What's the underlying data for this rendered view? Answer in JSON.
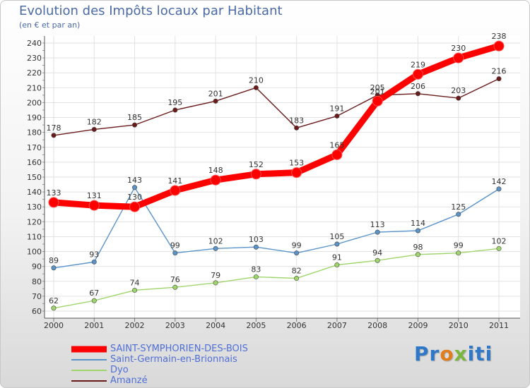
{
  "chart_data": {
    "type": "line",
    "title": "Evolution des Impôts locaux par Habitant",
    "subtitle": "(en € et par an)",
    "xlabel": "",
    "ylabel": "",
    "x": [
      "2000",
      "2001",
      "2002",
      "2003",
      "2004",
      "2005",
      "2006",
      "2007",
      "2008",
      "2009",
      "2010",
      "2011"
    ],
    "ylim": [
      60,
      240
    ],
    "yticks": [
      60,
      70,
      80,
      90,
      100,
      110,
      120,
      130,
      140,
      150,
      160,
      170,
      180,
      190,
      200,
      210,
      220,
      230,
      240
    ],
    "grid": true,
    "series": [
      {
        "name": "Amanzé",
        "color": "#6b1a1a",
        "values": [
          178,
          182,
          185,
          195,
          201,
          210,
          183,
          191,
          205,
          206,
          203,
          216
        ]
      },
      {
        "name": "Saint-Germain-en-Brionnais",
        "color": "#5a93c8",
        "values": [
          89,
          93,
          143,
          99,
          102,
          103,
          99,
          105,
          113,
          114,
          125,
          142
        ]
      },
      {
        "name": "Dyo",
        "color": "#9fd66b",
        "values": [
          62,
          67,
          74,
          76,
          79,
          83,
          82,
          91,
          94,
          98,
          99,
          102
        ]
      },
      {
        "name": "SAINT-SYMPHORIEN-DES-BOIS",
        "color": "#ff0000",
        "values": [
          133,
          131,
          130,
          141,
          148,
          152,
          153,
          165,
          201,
          219,
          230,
          238
        ]
      }
    ],
    "legend": [
      "SAINT-SYMPHORIEN-DES-BOIS",
      "Saint-Germain-en-Brionnais",
      "Dyo",
      "Amanzé"
    ]
  },
  "logo": {
    "p1": "Pr",
    "p2": "o",
    "p3": "x",
    "p4": "iti"
  }
}
